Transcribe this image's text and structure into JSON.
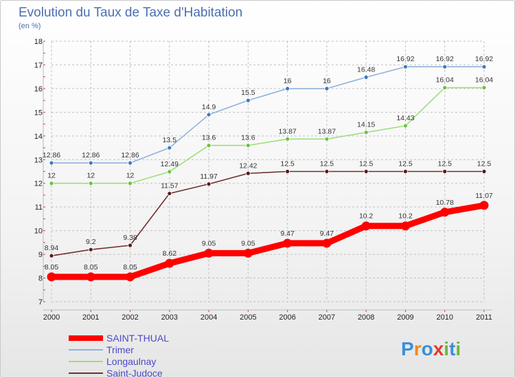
{
  "title": "Evolution du Taux de Taxe d'Habitation",
  "subtitle": "(en %)",
  "logo_text": "Proxiti",
  "colors": {
    "saint_thual": "#ff0000",
    "trimer": "#8fb2da",
    "longaulnay": "#9be07a",
    "saint_judoce": "#6e3030",
    "grid": "#c0c0c0",
    "axis_tick": "#d04040"
  },
  "chart_data": {
    "type": "line",
    "title": "Evolution du Taux de Taxe d'Habitation",
    "subtitle": "(en %)",
    "xlabel": "",
    "ylabel": "",
    "categories": [
      "2000",
      "2001",
      "2002",
      "2003",
      "2004",
      "2005",
      "2006",
      "2007",
      "2008",
      "2009",
      "2010",
      "2011"
    ],
    "ylim": [
      7,
      18
    ],
    "yticks": [
      7,
      8,
      9,
      10,
      11,
      12,
      13,
      14,
      15,
      16,
      17,
      18
    ],
    "grid": true,
    "legend_position": "bottom-left",
    "series": [
      {
        "name": "SAINT-THUAL",
        "color": "#ff0000",
        "marker_color": "#ff0000",
        "thick": true,
        "values": [
          8.05,
          8.05,
          8.05,
          8.62,
          9.05,
          9.05,
          9.47,
          9.47,
          10.2,
          10.2,
          10.78,
          11.07
        ],
        "labels": [
          "8.05",
          "8.05",
          "8.05",
          "8.62",
          "9.05",
          "9.05",
          "9.47",
          "9.47",
          "10.2",
          "10.2",
          "10.78",
          "11.07"
        ]
      },
      {
        "name": "Trimer",
        "color": "#8fb2da",
        "marker_color": "#3a7ac0",
        "thick": false,
        "values": [
          12.86,
          12.86,
          12.86,
          13.5,
          14.9,
          15.5,
          16,
          16,
          16.48,
          16.92,
          16.92,
          16.92
        ],
        "labels": [
          "12.86",
          "12.86",
          "12.86",
          "13.5",
          "14.9",
          "15.5",
          "16",
          "16",
          "16.48",
          "16.92",
          "16.92",
          "16.92"
        ]
      },
      {
        "name": "Longaulnay",
        "color": "#9be07a",
        "marker_color": "#6cc040",
        "thick": false,
        "values": [
          12,
          12,
          12,
          12.49,
          13.6,
          13.6,
          13.87,
          13.87,
          14.15,
          14.43,
          16.04,
          16.04
        ],
        "labels": [
          "12",
          "12",
          "12",
          "12.49",
          "13.6",
          "13.6",
          "13.87",
          "13.87",
          "14.15",
          "14.43",
          "16.04",
          "16.04"
        ]
      },
      {
        "name": "Saint-Judoce",
        "color": "#6e3030",
        "marker_color": "#5a1a1a",
        "thick": false,
        "values": [
          8.94,
          9.2,
          9.38,
          11.57,
          11.97,
          12.42,
          12.5,
          12.5,
          12.5,
          12.5,
          12.5,
          12.5
        ],
        "labels": [
          "8.94",
          "9.2",
          "9.38",
          "11.57",
          "11.97",
          "12.42",
          "12.5",
          "12.5",
          "12.5",
          "12.5",
          "12.5",
          "12.5"
        ]
      }
    ]
  }
}
